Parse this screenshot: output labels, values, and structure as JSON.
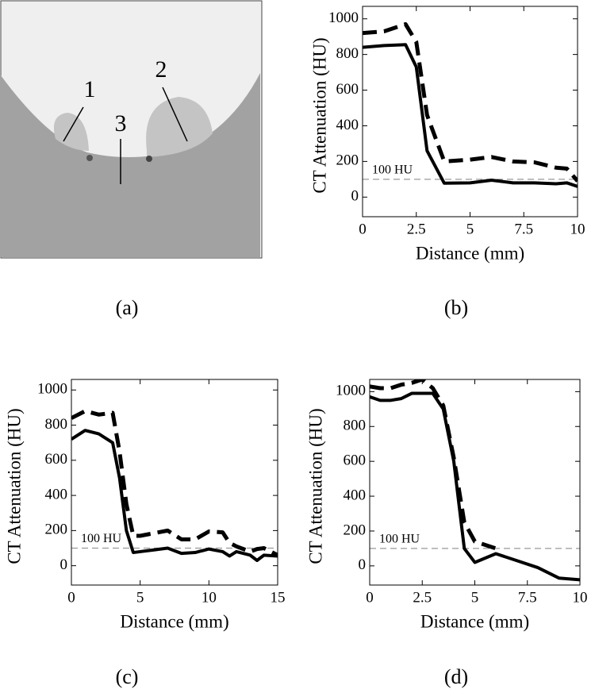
{
  "image_panel": {
    "labels": [
      "1",
      "2",
      "3"
    ],
    "caption": "(a)"
  },
  "chart_data": [
    {
      "type": "line",
      "caption": "(b)",
      "xlabel": "Distance (mm)",
      "ylabel": "CT Attenuation (HU)",
      "xlim": [
        0,
        10
      ],
      "xticks": [
        0,
        2.5,
        5,
        7.5,
        10
      ],
      "ylim": [
        -110,
        1070
      ],
      "yticks": [
        0,
        200,
        400,
        600,
        800,
        1000
      ],
      "reference_line": 100,
      "reference_label": "100 HU",
      "reference_color": "#999999",
      "x": [
        0,
        1,
        2,
        2.5,
        3,
        3.8,
        5,
        6,
        7,
        8,
        9,
        9.5,
        10
      ],
      "series": [
        {
          "color": "#000000",
          "dash": "solid",
          "values": [
            840,
            850,
            855,
            730,
            260,
            78,
            80,
            95,
            80,
            80,
            75,
            80,
            60
          ]
        },
        {
          "color": "#000000",
          "dash": "dashed",
          "values": [
            920,
            930,
            970,
            870,
            460,
            200,
            210,
            225,
            200,
            195,
            165,
            160,
            90
          ]
        }
      ]
    },
    {
      "type": "line",
      "caption": "(c)",
      "xlabel": "Distance (mm)",
      "ylabel": "CT Attenuation (HU)",
      "xlim": [
        0,
        15
      ],
      "xticks": [
        0,
        5,
        10,
        15
      ],
      "ylim": [
        -110,
        1060
      ],
      "yticks": [
        0,
        200,
        400,
        600,
        800,
        1000
      ],
      "reference_line": 100,
      "reference_label": "100 HU",
      "reference_color": "#999999",
      "x": [
        0,
        1,
        2,
        3,
        3.5,
        4,
        4.5,
        5,
        6,
        7,
        8,
        9,
        10,
        11,
        11.5,
        12,
        13,
        13.5,
        14,
        15
      ],
      "series": [
        {
          "color": "#000000",
          "dash": "solid",
          "values": [
            720,
            770,
            750,
            700,
            500,
            200,
            75,
            80,
            90,
            100,
            70,
            75,
            95,
            80,
            55,
            80,
            60,
            30,
            60,
            55
          ]
        },
        {
          "color": "#000000",
          "dash": "dashed",
          "values": [
            840,
            880,
            860,
            870,
            650,
            350,
            170,
            170,
            185,
            200,
            150,
            150,
            195,
            190,
            130,
            110,
            80,
            95,
            100,
            60
          ]
        }
      ]
    },
    {
      "type": "line",
      "caption": "(d)",
      "xlabel": "Distance (mm)",
      "ylabel": "CT Attenuation (HU)",
      "xlim": [
        0,
        10
      ],
      "xticks": [
        0,
        2.5,
        5,
        7.5,
        10
      ],
      "ylim": [
        -110,
        1070
      ],
      "yticks": [
        0,
        200,
        400,
        600,
        800,
        1000
      ],
      "reference_line": 100,
      "reference_label": "100 HU",
      "reference_color": "#999999",
      "x": [
        0,
        0.5,
        1,
        1.5,
        2,
        2.5,
        3,
        3.5,
        4,
        4.5,
        5,
        6,
        7,
        8,
        9,
        10
      ],
      "series": [
        {
          "color": "#000000",
          "dash": "solid",
          "values": [
            970,
            950,
            950,
            960,
            990,
            990,
            990,
            900,
            600,
            100,
            20,
            70,
            30,
            -10,
            -70,
            -80
          ]
        },
        {
          "color": "#000000",
          "dash": "dashed",
          "values": [
            1030,
            1020,
            1020,
            1040,
            1050,
            1070,
            1020,
            920,
            620,
            250,
            140,
            100,
            null,
            null,
            null,
            null
          ]
        }
      ]
    }
  ]
}
